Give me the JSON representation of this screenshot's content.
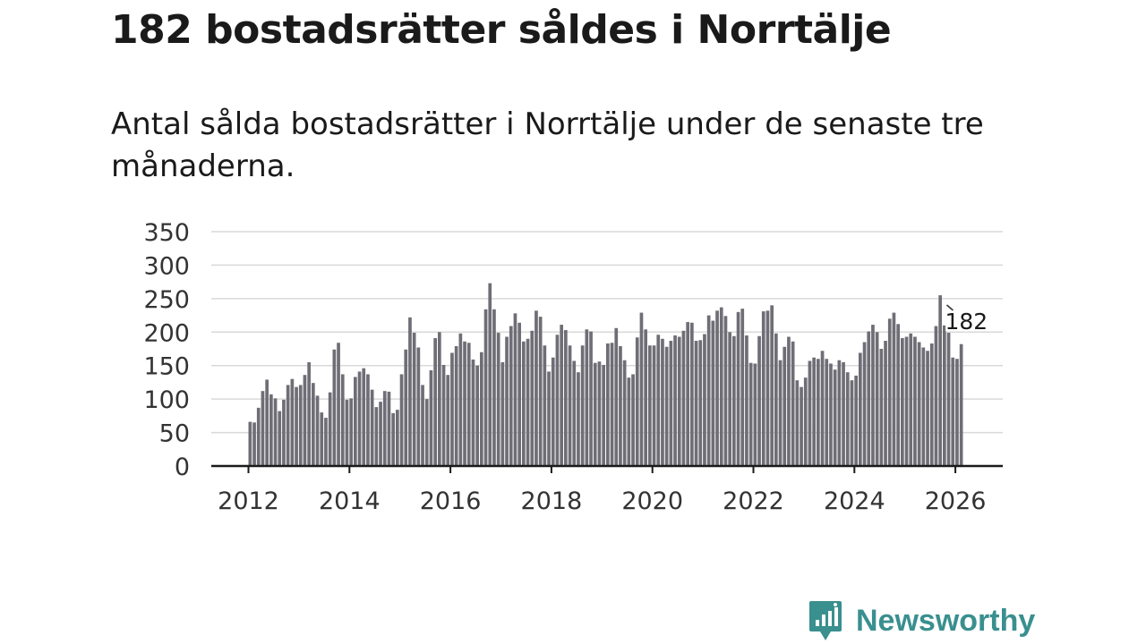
{
  "title": "182 bostadsrätter såldes i Norrtälje",
  "subtitle": "Antal sålda bostadsrätter i Norrtälje under de senaste tre månaderna.",
  "logo": {
    "text": "Newsworthy",
    "color": "#3a8f8f"
  },
  "colors": {
    "bar": "#6f6e76",
    "highlight": "#1a9a9e",
    "grid": "#d9d9d9",
    "axis": "#1a1a1a"
  },
  "chart_data": {
    "type": "bar",
    "title": "182 bostadsrätter såldes i Norrtälje",
    "xlabel": "",
    "ylabel": "",
    "ylim": [
      0,
      350
    ],
    "yticks": [
      0,
      50,
      100,
      150,
      200,
      250,
      300,
      350
    ],
    "xticks": [
      "2012",
      "2014",
      "2016",
      "2018",
      "2020",
      "2022",
      "2024",
      "2026"
    ],
    "start": "2012-01",
    "frequency": "monthly",
    "values": [
      66,
      65,
      87,
      112,
      129,
      107,
      101,
      82,
      99,
      121,
      130,
      118,
      121,
      136,
      155,
      124,
      105,
      80,
      72,
      110,
      174,
      184,
      137,
      99,
      101,
      133,
      141,
      146,
      137,
      114,
      88,
      96,
      112,
      111,
      79,
      84,
      137,
      174,
      222,
      199,
      177,
      121,
      100,
      143,
      191,
      200,
      151,
      136,
      169,
      179,
      198,
      186,
      184,
      159,
      150,
      170,
      234,
      273,
      234,
      199,
      155,
      193,
      209,
      228,
      214,
      186,
      190,
      202,
      232,
      223,
      180,
      141,
      162,
      196,
      211,
      203,
      180,
      157,
      140,
      180,
      204,
      201,
      154,
      156,
      151,
      183,
      184,
      206,
      179,
      158,
      132,
      137,
      192,
      229,
      204,
      180,
      180,
      196,
      190,
      178,
      187,
      195,
      193,
      202,
      215,
      214,
      187,
      188,
      197,
      225,
      217,
      232,
      237,
      224,
      200,
      194,
      230,
      235,
      195,
      154,
      153,
      194,
      231,
      232,
      240,
      198,
      158,
      178,
      193,
      186,
      128,
      118,
      132,
      157,
      162,
      160,
      172,
      160,
      153,
      144,
      158,
      155,
      140,
      128,
      135,
      169,
      185,
      201,
      211,
      200,
      175,
      187,
      220,
      229,
      212,
      191,
      193,
      198,
      193,
      185,
      177,
      172,
      183,
      209,
      255,
      210,
      199,
      162,
      160,
      182
    ],
    "highlight": {
      "label": "182",
      "value": 182,
      "index": 170
    }
  }
}
